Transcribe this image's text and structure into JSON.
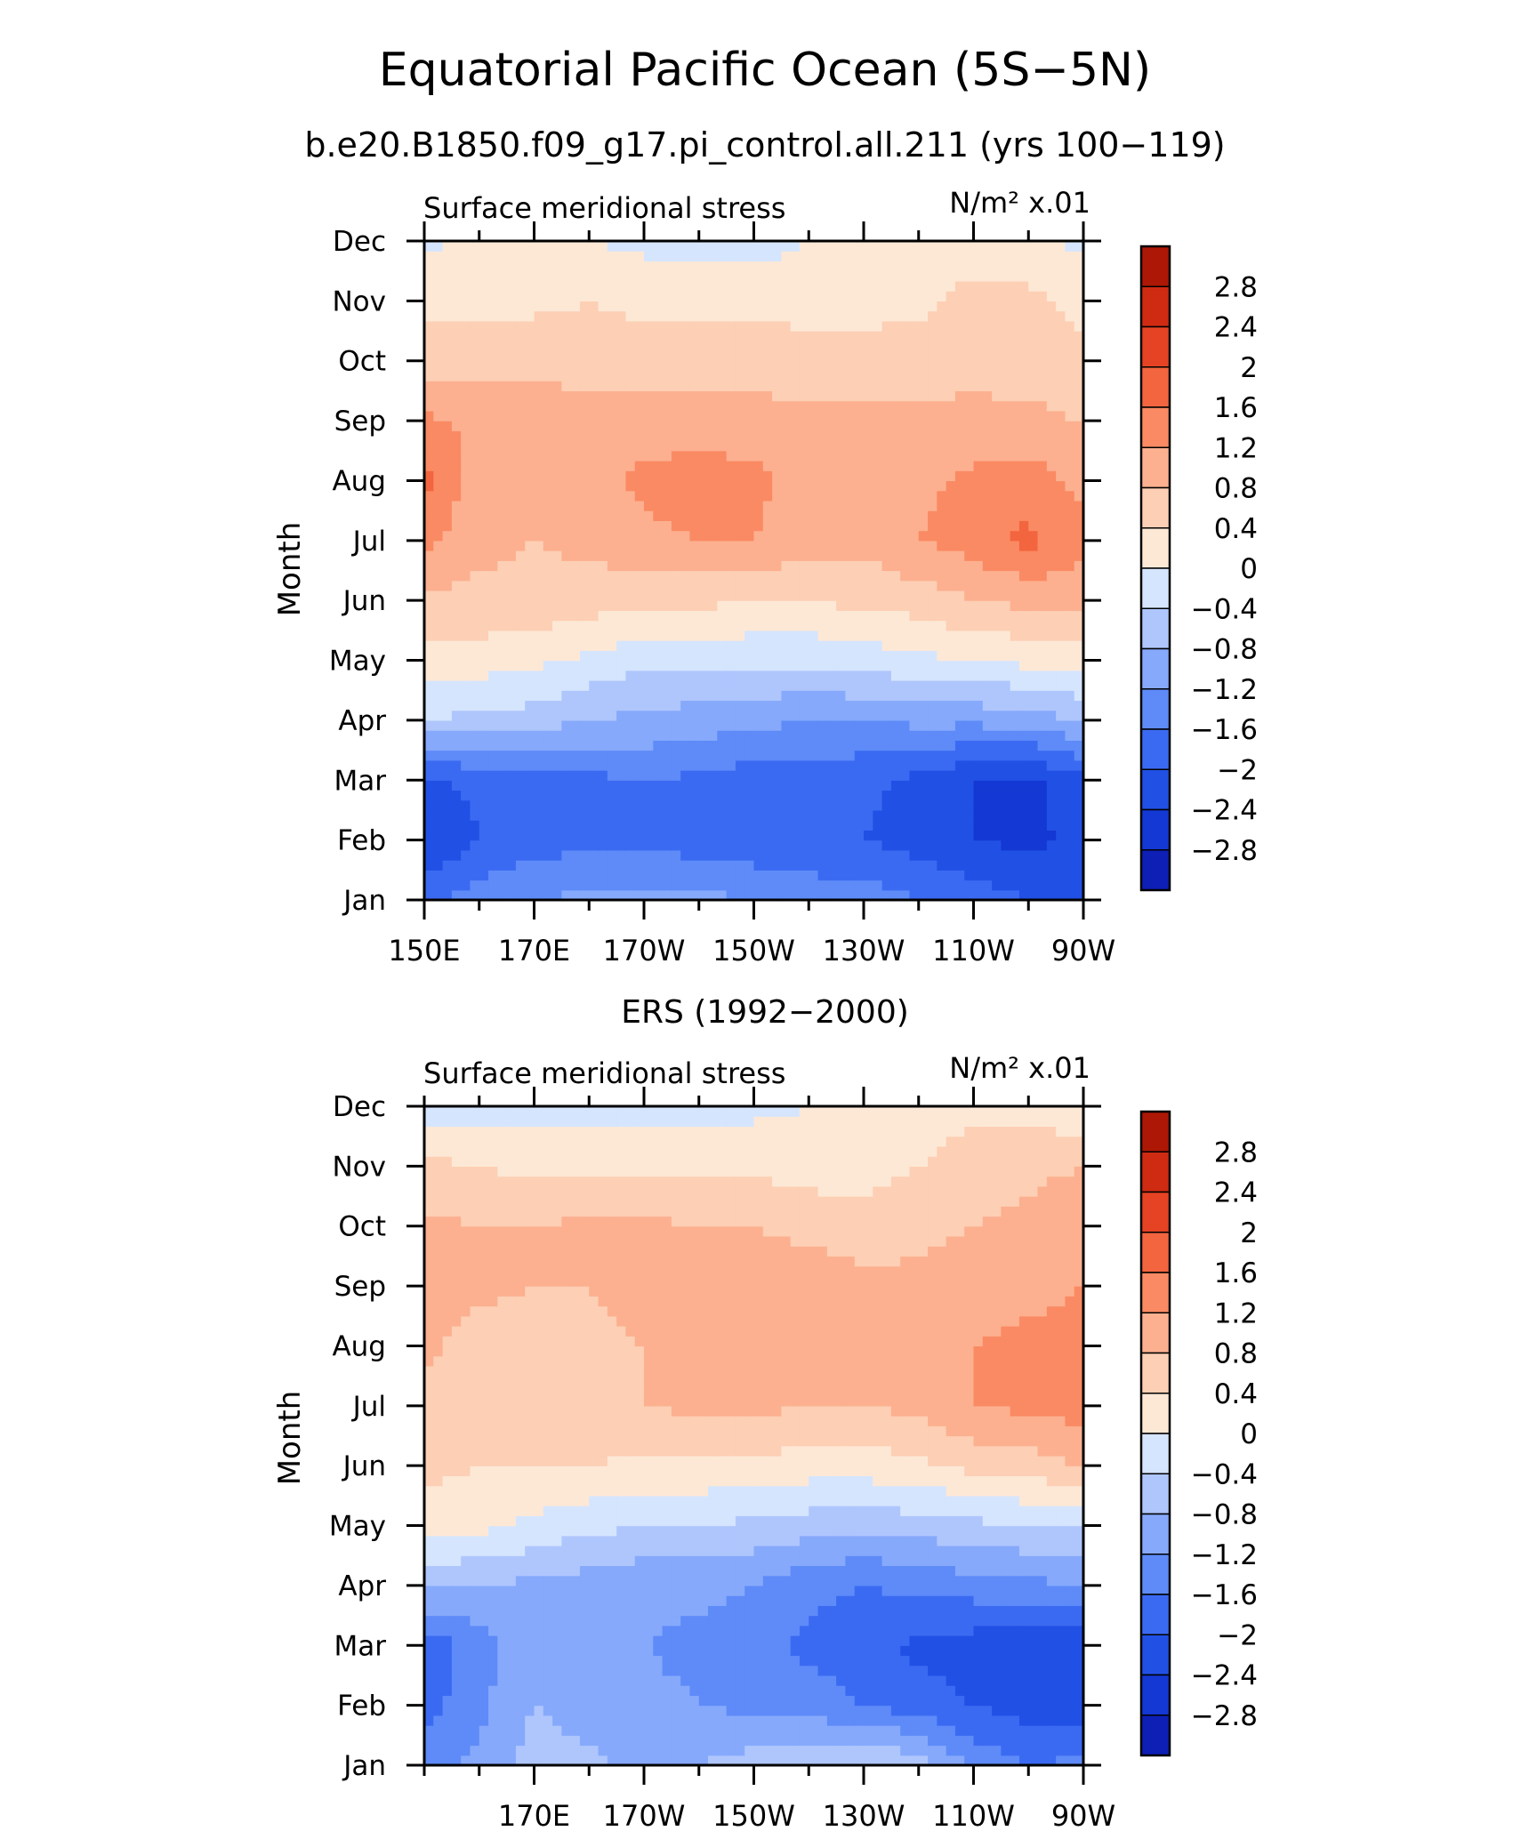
{
  "figure": {
    "title": "Equatorial Pacific Ocean (5S−5N)",
    "subtitle": "b.e20.B1850.f09_g17.pi_control.all.211 (yrs 100−119)"
  },
  "colors": {
    "levels": [
      "#07007e",
      "#0d1fb5",
      "#1438d3",
      "#2150e5",
      "#3b6af2",
      "#5e8bf8",
      "#86a9fb",
      "#afc6fd",
      "#d5e5fe",
      "#fde8d6",
      "#fdcfb4",
      "#fcb090",
      "#fa8a63",
      "#f3653f",
      "#e54323",
      "#cf2a12",
      "#ad1705",
      "#830600"
    ]
  },
  "chart_data": [
    {
      "type": "heatmap",
      "panel_title": "",
      "left_label": "Surface meridional stress",
      "right_label": "N/m² x.01",
      "ylabel": "Month",
      "x": [
        150,
        160,
        170,
        180,
        190,
        200,
        210,
        220,
        230,
        240,
        250,
        260,
        270
      ],
      "xticks": [
        150,
        170,
        190,
        210,
        230,
        250,
        270
      ],
      "xtick_labels": [
        "150E",
        "170E",
        "170W",
        "150W",
        "130W",
        "110W",
        "90W"
      ],
      "xlim": [
        150,
        270
      ],
      "months": [
        "Jan",
        "Feb",
        "Mar",
        "Apr",
        "May",
        "Jun",
        "Jul",
        "Aug",
        "Sep",
        "Oct",
        "Nov",
        "Dec"
      ],
      "ylim": [
        1,
        12
      ],
      "levels": [
        -2.8,
        -2.4,
        -2.0,
        -1.6,
        -1.2,
        -0.8,
        -0.4,
        0,
        0.4,
        0.8,
        1.2,
        1.6,
        2.0,
        2.4,
        2.8
      ],
      "colorbar_labels": [
        "2.8",
        "2.4",
        "2",
        "1.6",
        "1.2",
        "0.8",
        "0.4",
        "0",
        "−0.4",
        "−0.8",
        "−1.2",
        "−1.6",
        "−2",
        "−2.4",
        "−2.8"
      ],
      "values": [
        [
          -1.7,
          -1.4,
          -1.2,
          -1.1,
          -1.1,
          -1.1,
          -1.2,
          -1.3,
          -1.4,
          -1.6,
          -1.8,
          -2.0,
          -2.1
        ],
        [
          -2.4,
          -2.0,
          -1.8,
          -1.7,
          -1.7,
          -1.8,
          -1.9,
          -2.0,
          -2.0,
          -2.2,
          -2.4,
          -2.5,
          -2.3
        ],
        [
          -2.1,
          -1.9,
          -1.8,
          -1.7,
          -1.6,
          -1.7,
          -1.8,
          -1.8,
          -1.9,
          -2.1,
          -2.4,
          -2.5,
          -2.1
        ],
        [
          -0.4,
          -0.5,
          -0.6,
          -0.8,
          -0.9,
          -1.0,
          -1.1,
          -1.2,
          -1.2,
          -1.1,
          -1.1,
          -1.0,
          -0.8
        ],
        [
          0.3,
          0.2,
          0.1,
          -0.1,
          -0.3,
          -0.3,
          -0.3,
          -0.3,
          -0.2,
          -0.1,
          0.0,
          0.1,
          0.2
        ],
        [
          0.7,
          0.7,
          0.7,
          0.6,
          0.5,
          0.5,
          0.4,
          0.4,
          0.5,
          0.6,
          0.8,
          0.9,
          1.0
        ],
        [
          1.3,
          0.9,
          0.8,
          0.9,
          1.1,
          1.2,
          1.2,
          1.0,
          0.9,
          1.2,
          1.4,
          1.7,
          1.3
        ],
        [
          1.7,
          1.0,
          0.9,
          1.0,
          1.3,
          1.4,
          1.3,
          1.0,
          0.9,
          1.1,
          1.3,
          1.4,
          1.1
        ],
        [
          1.3,
          1.1,
          1.0,
          1.0,
          1.0,
          1.0,
          1.0,
          0.9,
          0.9,
          0.9,
          0.9,
          0.9,
          0.8
        ],
        [
          0.6,
          0.6,
          0.7,
          0.6,
          0.6,
          0.6,
          0.6,
          0.5,
          0.5,
          0.6,
          0.7,
          0.6,
          0.5
        ],
        [
          0.3,
          0.3,
          0.3,
          0.4,
          0.3,
          0.3,
          0.3,
          0.3,
          0.3,
          0.3,
          0.6,
          0.5,
          0.3
        ],
        [
          -0.1,
          0.1,
          0.1,
          0.0,
          -0.1,
          -0.2,
          -0.2,
          0.0,
          0.1,
          0.1,
          0.1,
          0.1,
          -0.1
        ]
      ]
    },
    {
      "type": "heatmap",
      "panel_title": "ERS (1992−2000)",
      "left_label": "Surface meridional stress",
      "right_label": "N/m² x.01",
      "ylabel": "Month",
      "x": [
        150,
        160,
        170,
        180,
        190,
        200,
        210,
        220,
        230,
        240,
        250,
        260,
        270
      ],
      "xticks": [
        170,
        190,
        210,
        230,
        250,
        270
      ],
      "xtick_labels": [
        "170E",
        "170W",
        "150W",
        "130W",
        "110W",
        "90W"
      ],
      "xlim": [
        150,
        270
      ],
      "months": [
        "Jan",
        "Feb",
        "Mar",
        "Apr",
        "May",
        "Jun",
        "Jul",
        "Aug",
        "Sep",
        "Oct",
        "Nov",
        "Dec"
      ],
      "ylim": [
        1,
        12
      ],
      "levels": [
        -2.8,
        -2.4,
        -2.0,
        -1.6,
        -1.2,
        -0.8,
        -0.4,
        0,
        0.4,
        0.8,
        1.2,
        1.6,
        2.0,
        2.4,
        2.8
      ],
      "colorbar_labels": [
        "2.8",
        "2.4",
        "2",
        "1.6",
        "1.2",
        "0.8",
        "0.4",
        "0",
        "−0.4",
        "−0.8",
        "−1.2",
        "−1.6",
        "−2",
        "−2.4",
        "−2.8"
      ],
      "values": [
        [
          -1.4,
          -1.1,
          -0.6,
          -0.7,
          -0.9,
          -0.8,
          -0.6,
          -0.5,
          -0.3,
          -0.6,
          -1.3,
          -1.6,
          -1.5
        ],
        [
          -1.8,
          -1.3,
          -0.8,
          -1.0,
          -1.1,
          -1.2,
          -1.3,
          -1.4,
          -1.6,
          -1.8,
          -2.0,
          -2.2,
          -2.2
        ],
        [
          -1.9,
          -1.4,
          -0.8,
          -1.1,
          -1.2,
          -1.3,
          -1.4,
          -1.7,
          -1.8,
          -2.1,
          -2.2,
          -2.4,
          -2.3
        ],
        [
          -0.7,
          -0.8,
          -0.9,
          -1.0,
          -1.1,
          -1.1,
          -1.2,
          -1.5,
          -1.6,
          -1.5,
          -1.4,
          -1.3,
          -1.2
        ],
        [
          0.2,
          0.1,
          -0.1,
          -0.3,
          -0.4,
          -0.4,
          -0.5,
          -0.6,
          -0.7,
          -0.6,
          -0.5,
          -0.4,
          -0.4
        ],
        [
          0.5,
          0.4,
          0.4,
          0.4,
          0.3,
          0.3,
          0.3,
          0.2,
          0.2,
          0.3,
          0.5,
          0.6,
          0.8
        ],
        [
          0.7,
          0.6,
          0.6,
          0.7,
          0.8,
          0.9,
          0.9,
          0.8,
          0.8,
          0.9,
          1.2,
          1.3,
          1.4
        ],
        [
          0.9,
          0.6,
          0.6,
          0.7,
          0.8,
          0.9,
          0.9,
          0.9,
          0.9,
          1.0,
          1.2,
          1.3,
          1.3
        ],
        [
          1.1,
          0.9,
          0.8,
          0.8,
          0.9,
          1.0,
          1.0,
          1.0,
          0.9,
          0.9,
          1.0,
          1.1,
          1.2
        ],
        [
          0.9,
          0.8,
          0.8,
          0.9,
          0.9,
          0.8,
          0.8,
          0.7,
          0.6,
          0.7,
          0.8,
          0.9,
          1.1
        ],
        [
          0.5,
          0.4,
          0.3,
          0.3,
          0.3,
          0.3,
          0.3,
          0.2,
          0.2,
          0.4,
          0.6,
          0.7,
          0.8
        ],
        [
          -0.2,
          -0.2,
          -0.2,
          -0.1,
          -0.1,
          -0.1,
          -0.1,
          0.0,
          0.1,
          0.2,
          0.3,
          0.2,
          0.1
        ]
      ]
    }
  ]
}
